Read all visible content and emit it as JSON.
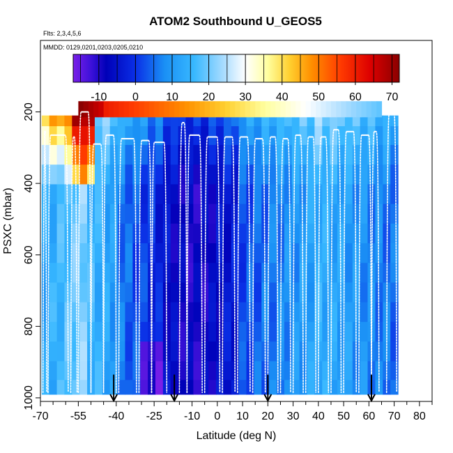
{
  "chart_data": {
    "type": "heatmap",
    "title": "ATOM2 Southbound U_GEOS5",
    "flights_note": "Flts: 2,3,4,5,6",
    "dates_note": "MMDD: 0129,0201,0203,0205,0210",
    "xlabel": "Latitude (deg N)",
    "ylabel": "PSXC (mbar)",
    "xlim": [
      -70,
      85
    ],
    "ylim": [
      1010,
      0
    ],
    "x_ticks": [
      -70,
      -55,
      -40,
      -25,
      -10,
      0,
      10,
      20,
      30,
      40,
      50,
      60,
      70,
      80
    ],
    "x_minor_ticks": [
      -65,
      -60,
      -50,
      -45,
      -35,
      -30,
      -20,
      -15,
      -5,
      5,
      15,
      25,
      35,
      45,
      55,
      65,
      75,
      85
    ],
    "y_ticks": [
      200,
      400,
      600,
      800,
      1000
    ],
    "colorbar": {
      "label_ticks": [
        -10,
        0,
        10,
        20,
        30,
        40,
        50,
        60,
        70
      ],
      "range": [
        -17,
        72
      ],
      "stops": [
        {
          "value": -17,
          "color": "#7a1fe8"
        },
        {
          "value": -12,
          "color": "#3b10d8"
        },
        {
          "value": -8,
          "color": "#0000b8"
        },
        {
          "value": 0,
          "color": "#0a2fe6"
        },
        {
          "value": 8,
          "color": "#1a90f5"
        },
        {
          "value": 16,
          "color": "#38b8ff"
        },
        {
          "value": 24,
          "color": "#a8dcff"
        },
        {
          "value": 30,
          "color": "#ffffff"
        },
        {
          "value": 36,
          "color": "#ffffa0"
        },
        {
          "value": 42,
          "color": "#ffd030"
        },
        {
          "value": 48,
          "color": "#ff9000"
        },
        {
          "value": 56,
          "color": "#ff3a00"
        },
        {
          "value": 64,
          "color": "#dd0000"
        },
        {
          "value": 72,
          "color": "#8a0000"
        }
      ]
    },
    "grid_lats": [
      -68,
      -65,
      -62,
      -59,
      -56,
      -53,
      -50,
      -47,
      -44,
      -41,
      -38,
      -35,
      -32,
      -29,
      -26,
      -23,
      -20,
      -17,
      -14,
      -11,
      -8,
      -5,
      -2,
      1,
      4,
      7,
      10,
      13,
      16,
      19,
      22,
      25,
      28,
      31,
      34,
      37,
      40,
      43,
      46,
      49,
      52,
      55,
      58,
      61,
      64,
      67,
      70
    ],
    "grid_pressures": [
      215,
      265,
      320,
      375,
      430,
      485,
      540,
      595,
      650,
      705,
      760,
      815,
      870,
      925,
      975
    ],
    "profiles": [
      {
        "lat_start": -69,
        "lat_end": -67.5,
        "ptop": 255
      },
      {
        "lat_start": -67,
        "lat_end": -59,
        "ptop": 265
      },
      {
        "lat_start": -58,
        "lat_end": -55.5,
        "ptop": 270
      },
      {
        "lat_start": -55,
        "lat_end": -50,
        "ptop": 200
      },
      {
        "lat_start": -50,
        "lat_end": -45,
        "ptop": 290
      },
      {
        "lat_start": -45,
        "lat_end": -40,
        "ptop": 265
      },
      {
        "lat_start": -39,
        "lat_end": -32,
        "ptop": 275
      },
      {
        "lat_start": -31,
        "lat_end": -26,
        "ptop": 280
      },
      {
        "lat_start": -26,
        "lat_end": -20,
        "ptop": 285
      },
      {
        "lat_start": -15,
        "lat_end": -12,
        "ptop": 230
      },
      {
        "lat_start": -12,
        "lat_end": -6,
        "ptop": 265
      },
      {
        "lat_start": -5,
        "lat_end": 1,
        "ptop": 270
      },
      {
        "lat_start": 2,
        "lat_end": 7,
        "ptop": 270
      },
      {
        "lat_start": 8,
        "lat_end": 13,
        "ptop": 270
      },
      {
        "lat_start": 14,
        "lat_end": 19,
        "ptop": 275
      },
      {
        "lat_start": 20,
        "lat_end": 24,
        "ptop": 270
      },
      {
        "lat_start": 25,
        "lat_end": 29,
        "ptop": 275
      },
      {
        "lat_start": 30,
        "lat_end": 34,
        "ptop": 265
      },
      {
        "lat_start": 35,
        "lat_end": 39,
        "ptop": 270
      },
      {
        "lat_start": 40,
        "lat_end": 44,
        "ptop": 270
      },
      {
        "lat_start": 45,
        "lat_end": 49,
        "ptop": 250
      },
      {
        "lat_start": 50,
        "lat_end": 55,
        "ptop": 255
      },
      {
        "lat_start": 56,
        "lat_end": 61,
        "ptop": 265
      },
      {
        "lat_start": 61,
        "lat_end": 64,
        "ptop": 255
      },
      {
        "lat_start": 67,
        "lat_end": 71,
        "ptop": 200
      }
    ],
    "arrow_markers": [
      -41,
      -17,
      20,
      61
    ]
  }
}
